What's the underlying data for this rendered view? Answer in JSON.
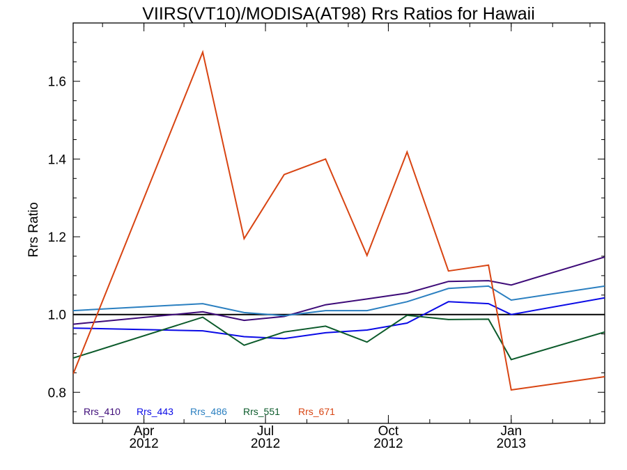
{
  "chart_data": {
    "type": "line",
    "title": "VIIRS(VT10)/MODISA(AT98)  Rrs Ratios for Hawaii",
    "xlabel": "",
    "ylabel": "Rrs Ratio",
    "xlim": [
      "2012-02-08",
      "2013-03-12"
    ],
    "ylim": [
      0.72,
      1.75
    ],
    "yticks": [
      "0.8",
      "1.0",
      "1.2",
      "1.4",
      "1.6"
    ],
    "xticks": [
      {
        "date": "2012-04-01",
        "month": "Apr",
        "year": "2012"
      },
      {
        "date": "2012-07-01",
        "month": "Jul",
        "year": "2012"
      },
      {
        "date": "2012-10-01",
        "month": "Oct",
        "year": "2012"
      },
      {
        "date": "2013-01-01",
        "month": "Jan",
        "year": "2013"
      }
    ],
    "reference_line": {
      "y": 1.0,
      "color": "#000000"
    },
    "legend_position": "bottom-left",
    "series": [
      {
        "name": "Rrs_410",
        "color": "#3d0a78",
        "x": [
          "2012-02-08",
          "2012-05-15",
          "2012-06-15",
          "2012-07-15",
          "2012-08-15",
          "2012-09-15",
          "2012-10-15",
          "2012-11-15",
          "2012-12-15",
          "2013-01-01",
          "2013-03-12"
        ],
        "y": [
          0.975,
          1.007,
          0.985,
          0.995,
          1.025,
          1.04,
          1.055,
          1.085,
          1.087,
          1.076,
          1.148
        ]
      },
      {
        "name": "Rrs_443",
        "color": "#0a0ae6",
        "x": [
          "2012-02-08",
          "2012-05-15",
          "2012-06-15",
          "2012-07-15",
          "2012-08-15",
          "2012-09-15",
          "2012-10-15",
          "2012-11-15",
          "2012-12-15",
          "2013-01-01",
          "2013-03-12"
        ],
        "y": [
          0.965,
          0.958,
          0.943,
          0.938,
          0.953,
          0.96,
          0.978,
          1.033,
          1.028,
          1.0,
          1.043
        ]
      },
      {
        "name": "Rrs_486",
        "color": "#2a7fc0",
        "x": [
          "2012-02-08",
          "2012-05-15",
          "2012-06-15",
          "2012-07-15",
          "2012-08-15",
          "2012-09-15",
          "2012-10-15",
          "2012-11-15",
          "2012-12-15",
          "2013-01-01",
          "2013-03-12"
        ],
        "y": [
          1.01,
          1.028,
          1.005,
          0.997,
          1.01,
          1.01,
          1.033,
          1.067,
          1.073,
          1.037,
          1.073
        ]
      },
      {
        "name": "Rrs_551",
        "color": "#0b5a2a",
        "x": [
          "2012-02-08",
          "2012-05-15",
          "2012-06-15",
          "2012-07-15",
          "2012-08-15",
          "2012-09-15",
          "2012-10-15",
          "2012-11-15",
          "2012-12-15",
          "2013-01-01",
          "2013-03-12"
        ],
        "y": [
          0.888,
          0.993,
          0.921,
          0.955,
          0.97,
          0.929,
          0.998,
          0.987,
          0.988,
          0.884,
          0.955
        ]
      },
      {
        "name": "Rrs_671",
        "color": "#d84412",
        "x": [
          "2012-02-08",
          "2012-05-15",
          "2012-06-15",
          "2012-07-15",
          "2012-08-15",
          "2012-09-15",
          "2012-10-15",
          "2012-11-15",
          "2012-12-15",
          "2013-01-01",
          "2013-03-12"
        ],
        "y": [
          0.847,
          1.675,
          1.195,
          1.36,
          1.4,
          1.152,
          1.418,
          1.112,
          1.127,
          0.806,
          0.84
        ]
      }
    ]
  }
}
